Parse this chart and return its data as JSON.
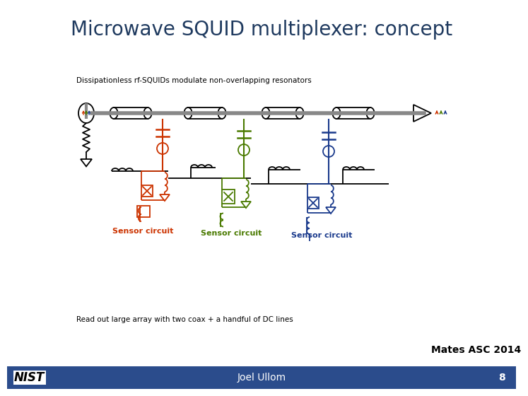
{
  "title": "Microwave SQUID multiplexer: concept",
  "title_color": "#1F3A5F",
  "title_fontsize": 20,
  "bg_color": "#FFFFFF",
  "footer_bg_color": "#2B4C8C",
  "footer_text": "Joel Ullom",
  "footer_text_color": "#FFFFFF",
  "footer_number": "8",
  "attribution_text": "Mates ASC 2014",
  "top_label": "Dissipationless rf-SQUIDs modulate non-overlapping resonators",
  "bottom_label": "Read out large array with two coax + a handful of DC lines",
  "red_color": "#CC3300",
  "green_color": "#4A7A00",
  "blue_color": "#1A3A8C",
  "black_color": "#000000",
  "gray_color": "#888888"
}
